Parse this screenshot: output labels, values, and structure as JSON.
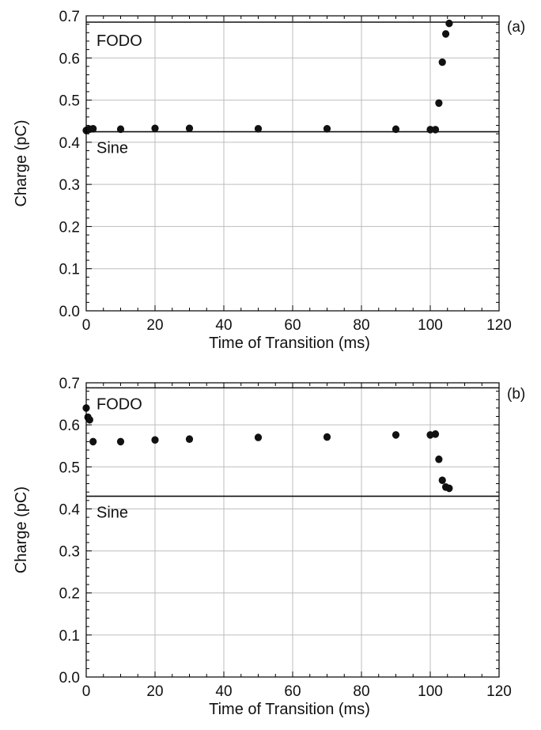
{
  "colors": {
    "grid": "#bdbdbd",
    "frame": "#000000",
    "points": "#111111",
    "reference_lines": "#111111"
  },
  "chart_data": [
    {
      "type": "scatter",
      "panel_label": "(a)",
      "xlabel": "Time of Transition (ms)",
      "ylabel": "Charge (pC)",
      "xlim": [
        0,
        120
      ],
      "ylim": [
        0.0,
        0.7
      ],
      "x_ticks": [
        "0",
        "20",
        "40",
        "60",
        "80",
        "100",
        "120"
      ],
      "y_ticks": [
        "0.0",
        "0.1",
        "0.2",
        "0.3",
        "0.4",
        "0.5",
        "0.6",
        "0.7"
      ],
      "grid": true,
      "reference_lines": [
        {
          "label": "FODO",
          "y": 0.685,
          "label_position": "above"
        },
        {
          "label": "Sine",
          "y": 0.425,
          "label_position": "below"
        }
      ],
      "x": [
        0,
        0.5,
        1,
        2,
        10,
        20,
        30,
        50,
        70,
        90,
        100,
        101.5,
        102.5,
        103.5,
        104.5,
        105.5
      ],
      "y": [
        0.428,
        0.43,
        0.431,
        0.432,
        0.431,
        0.433,
        0.433,
        0.432,
        0.432,
        0.431,
        0.43,
        0.43,
        0.493,
        0.59,
        0.657,
        0.682
      ]
    },
    {
      "type": "scatter",
      "panel_label": "(b)",
      "xlabel": "Time of Transition (ms)",
      "ylabel": "Charge (pC)",
      "xlim": [
        0,
        120
      ],
      "ylim": [
        0.0,
        0.7
      ],
      "x_ticks": [
        "0",
        "20",
        "40",
        "60",
        "80",
        "100",
        "120"
      ],
      "y_ticks": [
        "0.0",
        "0.1",
        "0.2",
        "0.3",
        "0.4",
        "0.5",
        "0.6",
        "0.7"
      ],
      "grid": true,
      "reference_lines": [
        {
          "label": "FODO",
          "y": 0.688,
          "label_position": "below"
        },
        {
          "label": "Sine",
          "y": 0.43,
          "label_position": "below"
        }
      ],
      "x": [
        0,
        0.5,
        1,
        2,
        10,
        20,
        30,
        50,
        70,
        90,
        100,
        101.5,
        102.5,
        103.5,
        104.5,
        105.5
      ],
      "y": [
        0.64,
        0.618,
        0.612,
        0.56,
        0.56,
        0.564,
        0.566,
        0.57,
        0.571,
        0.576,
        0.576,
        0.578,
        0.518,
        0.468,
        0.452,
        0.449
      ]
    }
  ]
}
